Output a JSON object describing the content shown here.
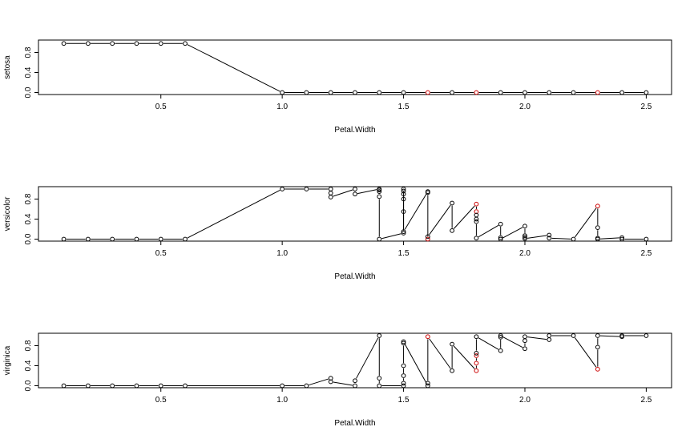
{
  "chart_data": [
    {
      "type": "line",
      "ylabel": "setosa",
      "xlabel": "Petal.Width",
      "xlim": [
        0.1,
        2.5
      ],
      "ylim": [
        0,
        1
      ],
      "xticks": [
        0.5,
        1.0,
        1.5,
        2.0,
        2.5
      ],
      "yticks": [
        0.0,
        0.4,
        0.8
      ],
      "colors": {
        "points": "#000000",
        "highlight": "#cc0000",
        "line": "#000000"
      },
      "x": [
        0.1,
        0.2,
        0.3,
        0.4,
        0.5,
        0.6,
        1.0,
        1.1,
        1.2,
        1.3,
        1.4,
        1.5,
        1.6,
        1.7,
        1.8,
        1.9,
        2.0,
        2.1,
        2.2,
        2.3,
        2.4,
        2.5
      ],
      "y": [
        0.98,
        0.98,
        0.98,
        0.98,
        0.98,
        0.98,
        0.0,
        0.0,
        0.0,
        0.0,
        0.0,
        0.0,
        0.0,
        0.0,
        0.0,
        0.0,
        0.0,
        0.0,
        0.0,
        0.0,
        0.0,
        0.0
      ],
      "highlight": [
        0,
        0,
        0,
        0,
        0,
        0,
        0,
        0,
        0,
        0,
        0,
        0,
        1,
        0,
        1,
        0,
        0,
        0,
        0,
        1,
        0,
        0
      ]
    },
    {
      "type": "line",
      "ylabel": "versicolor",
      "xlabel": "Petal.Width",
      "xlim": [
        0.1,
        2.5
      ],
      "ylim": [
        0,
        1
      ],
      "xticks": [
        0.5,
        1.0,
        1.5,
        2.0,
        2.5
      ],
      "yticks": [
        0.0,
        0.4,
        0.8
      ],
      "colors": {
        "points": "#000000",
        "highlight": "#cc0000",
        "line": "#000000"
      },
      "x": [
        0.1,
        0.2,
        0.3,
        0.4,
        0.5,
        0.6,
        1.0,
        1.1,
        1.2,
        1.2,
        1.2,
        1.3,
        1.3,
        1.4,
        1.4,
        1.4,
        1.4,
        1.4,
        1.5,
        1.5,
        1.5,
        1.5,
        1.5,
        1.5,
        1.5,
        1.6,
        1.6,
        1.6,
        1.6,
        1.7,
        1.7,
        1.8,
        1.8,
        1.8,
        1.8,
        1.8,
        1.8,
        1.9,
        1.9,
        1.9,
        2.0,
        2.0,
        2.0,
        2.0,
        2.1,
        2.1,
        2.2,
        2.3,
        2.3,
        2.3,
        2.3,
        2.4,
        2.4,
        2.5
      ],
      "y": [
        0.0,
        0.0,
        0.0,
        0.0,
        0.0,
        0.0,
        1.0,
        1.0,
        1.0,
        0.92,
        0.84,
        1.0,
        0.9,
        1.0,
        0.98,
        0.95,
        0.85,
        0.0,
        0.12,
        1.0,
        0.96,
        0.9,
        0.8,
        0.55,
        0.15,
        0.95,
        0.93,
        0.0,
        0.05,
        0.72,
        0.17,
        0.7,
        0.55,
        0.48,
        0.4,
        0.35,
        0.02,
        0.3,
        0.03,
        0.0,
        0.26,
        0.07,
        0.04,
        0.01,
        0.08,
        0.02,
        0.0,
        0.66,
        0.23,
        0.02,
        0.0,
        0.03,
        0.0,
        0.0
      ],
      "highlight": [
        0,
        0,
        0,
        0,
        0,
        0,
        0,
        0,
        0,
        0,
        0,
        0,
        0,
        0,
        0,
        0,
        0,
        0,
        0,
        0,
        0,
        0,
        0,
        0,
        0,
        0,
        0,
        1,
        0,
        0,
        0,
        1,
        1,
        0,
        0,
        0,
        0,
        0,
        0,
        0,
        0,
        0,
        0,
        0,
        0,
        0,
        0,
        1,
        0,
        0,
        0,
        0,
        0,
        0
      ]
    },
    {
      "type": "line",
      "ylabel": "virginica",
      "xlabel": "Petal.Width",
      "xlim": [
        0.1,
        2.5
      ],
      "ylim": [
        0,
        1
      ],
      "xticks": [
        0.5,
        1.0,
        1.5,
        2.0,
        2.5
      ],
      "yticks": [
        0.0,
        0.4,
        0.8
      ],
      "colors": {
        "points": "#000000",
        "highlight": "#cc0000",
        "line": "#000000"
      },
      "x": [
        0.1,
        0.2,
        0.3,
        0.4,
        0.5,
        0.6,
        1.0,
        1.1,
        1.2,
        1.2,
        1.3,
        1.3,
        1.4,
        1.4,
        1.4,
        1.5,
        1.5,
        1.5,
        1.5,
        1.5,
        1.5,
        1.6,
        1.6,
        1.6,
        1.7,
        1.7,
        1.8,
        1.8,
        1.8,
        1.8,
        1.8,
        1.9,
        1.9,
        1.9,
        2.0,
        2.0,
        2.0,
        2.1,
        2.1,
        2.2,
        2.3,
        2.3,
        2.3,
        2.4,
        2.4,
        2.5
      ],
      "y": [
        0.0,
        0.0,
        0.0,
        0.0,
        0.0,
        0.0,
        0.0,
        0.0,
        0.15,
        0.08,
        0.0,
        0.1,
        1.0,
        0.15,
        0.0,
        0.0,
        0.05,
        0.2,
        0.4,
        0.85,
        0.88,
        0.0,
        0.05,
        0.98,
        0.3,
        0.83,
        0.3,
        0.45,
        0.6,
        0.65,
        0.98,
        0.7,
        0.97,
        1.0,
        0.74,
        0.9,
        0.98,
        0.92,
        1.0,
        1.0,
        0.33,
        0.77,
        1.0,
        0.98,
        1.0,
        1.0
      ],
      "highlight": [
        0,
        0,
        0,
        0,
        0,
        0,
        0,
        0,
        0,
        0,
        0,
        0,
        0,
        0,
        0,
        0,
        0,
        0,
        0,
        0,
        0,
        0,
        0,
        1,
        0,
        0,
        1,
        1,
        1,
        0,
        0,
        0,
        0,
        0,
        0,
        0,
        0,
        0,
        0,
        0,
        1,
        0,
        0,
        0,
        0,
        0
      ]
    }
  ]
}
